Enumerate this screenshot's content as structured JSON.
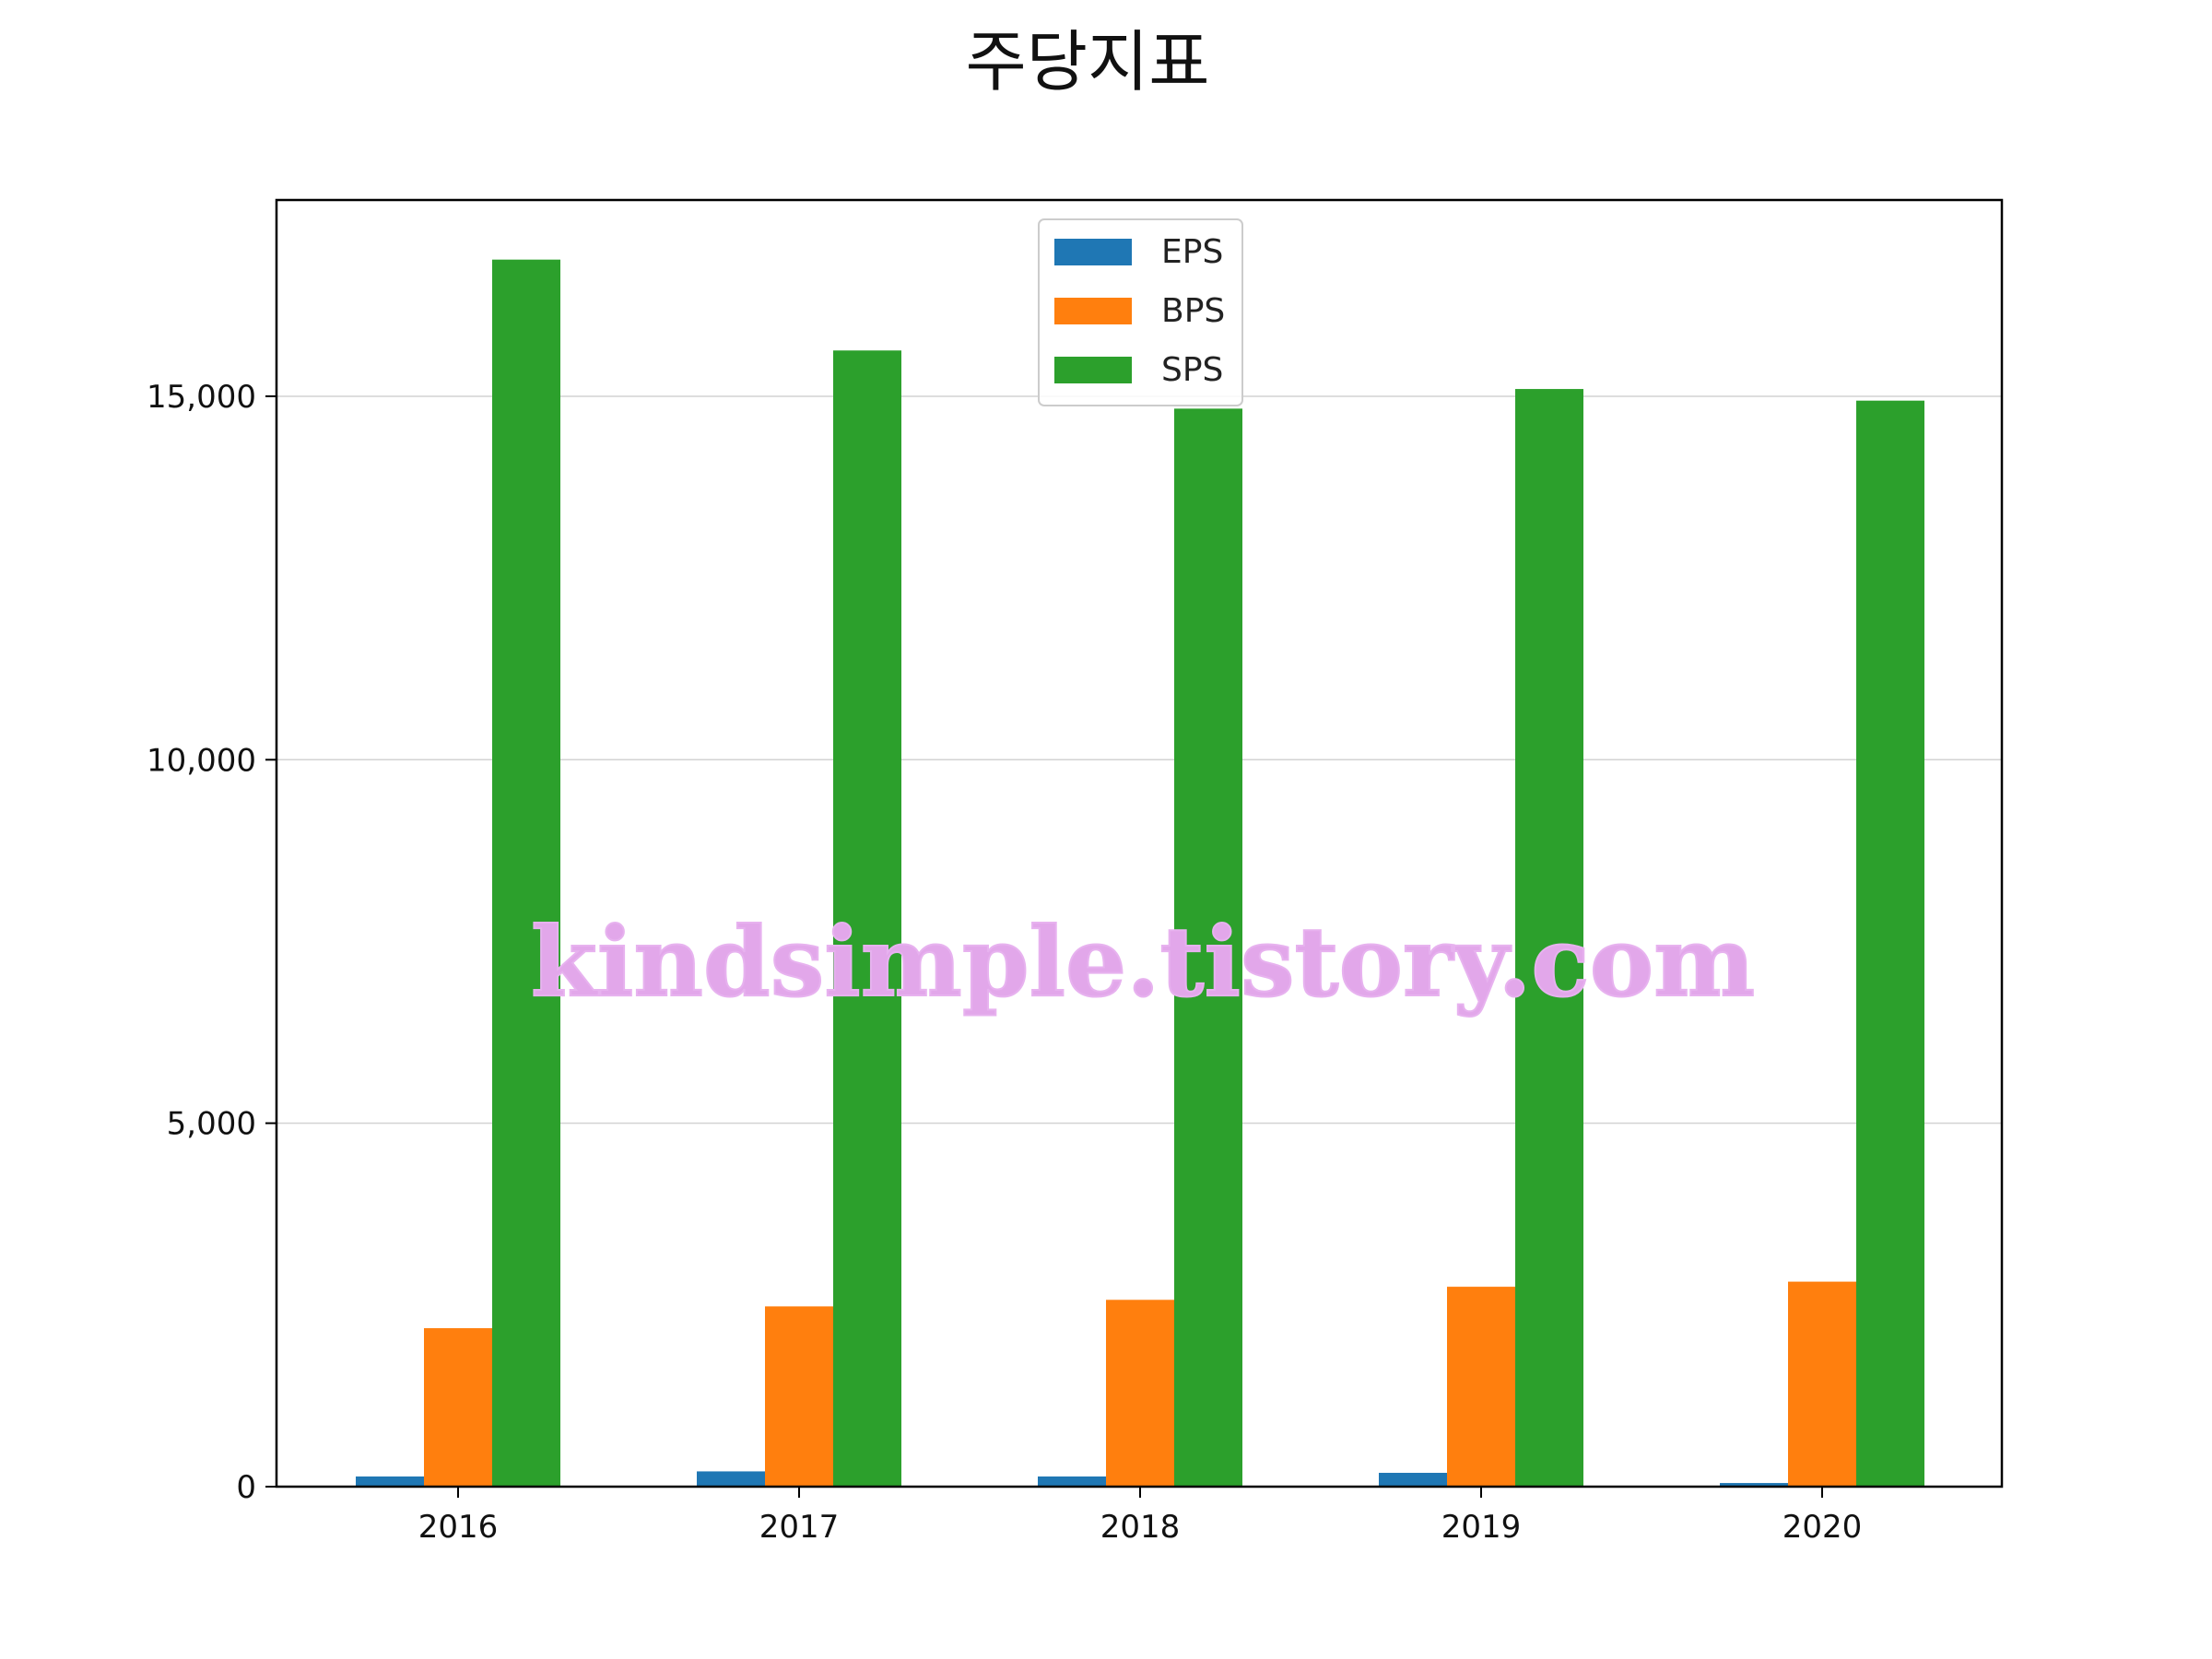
{
  "chart_data": {
    "type": "bar",
    "title": "주당지표",
    "xlabel": "",
    "ylabel": "",
    "categories": [
      "2016",
      "2017",
      "2018",
      "2019",
      "2020"
    ],
    "series": [
      {
        "name": "EPS",
        "color": "#1f77b4",
        "values": [
          140,
          210,
          140,
          190,
          50
        ]
      },
      {
        "name": "BPS",
        "color": "#ff7f0e",
        "values": [
          2180,
          2480,
          2570,
          2750,
          2820
        ]
      },
      {
        "name": "SPS",
        "color": "#2ca02c",
        "values": [
          16880,
          15630,
          14830,
          15100,
          14940
        ]
      }
    ],
    "ylim": [
      0,
      17700
    ],
    "yticks": [
      0,
      5000,
      10000,
      15000
    ],
    "ytick_labels": [
      "0",
      "5,000",
      "10,000",
      "15,000"
    ],
    "grid": "y",
    "legend_position": "top-center",
    "watermark": "kindsimple.tistory.com"
  }
}
